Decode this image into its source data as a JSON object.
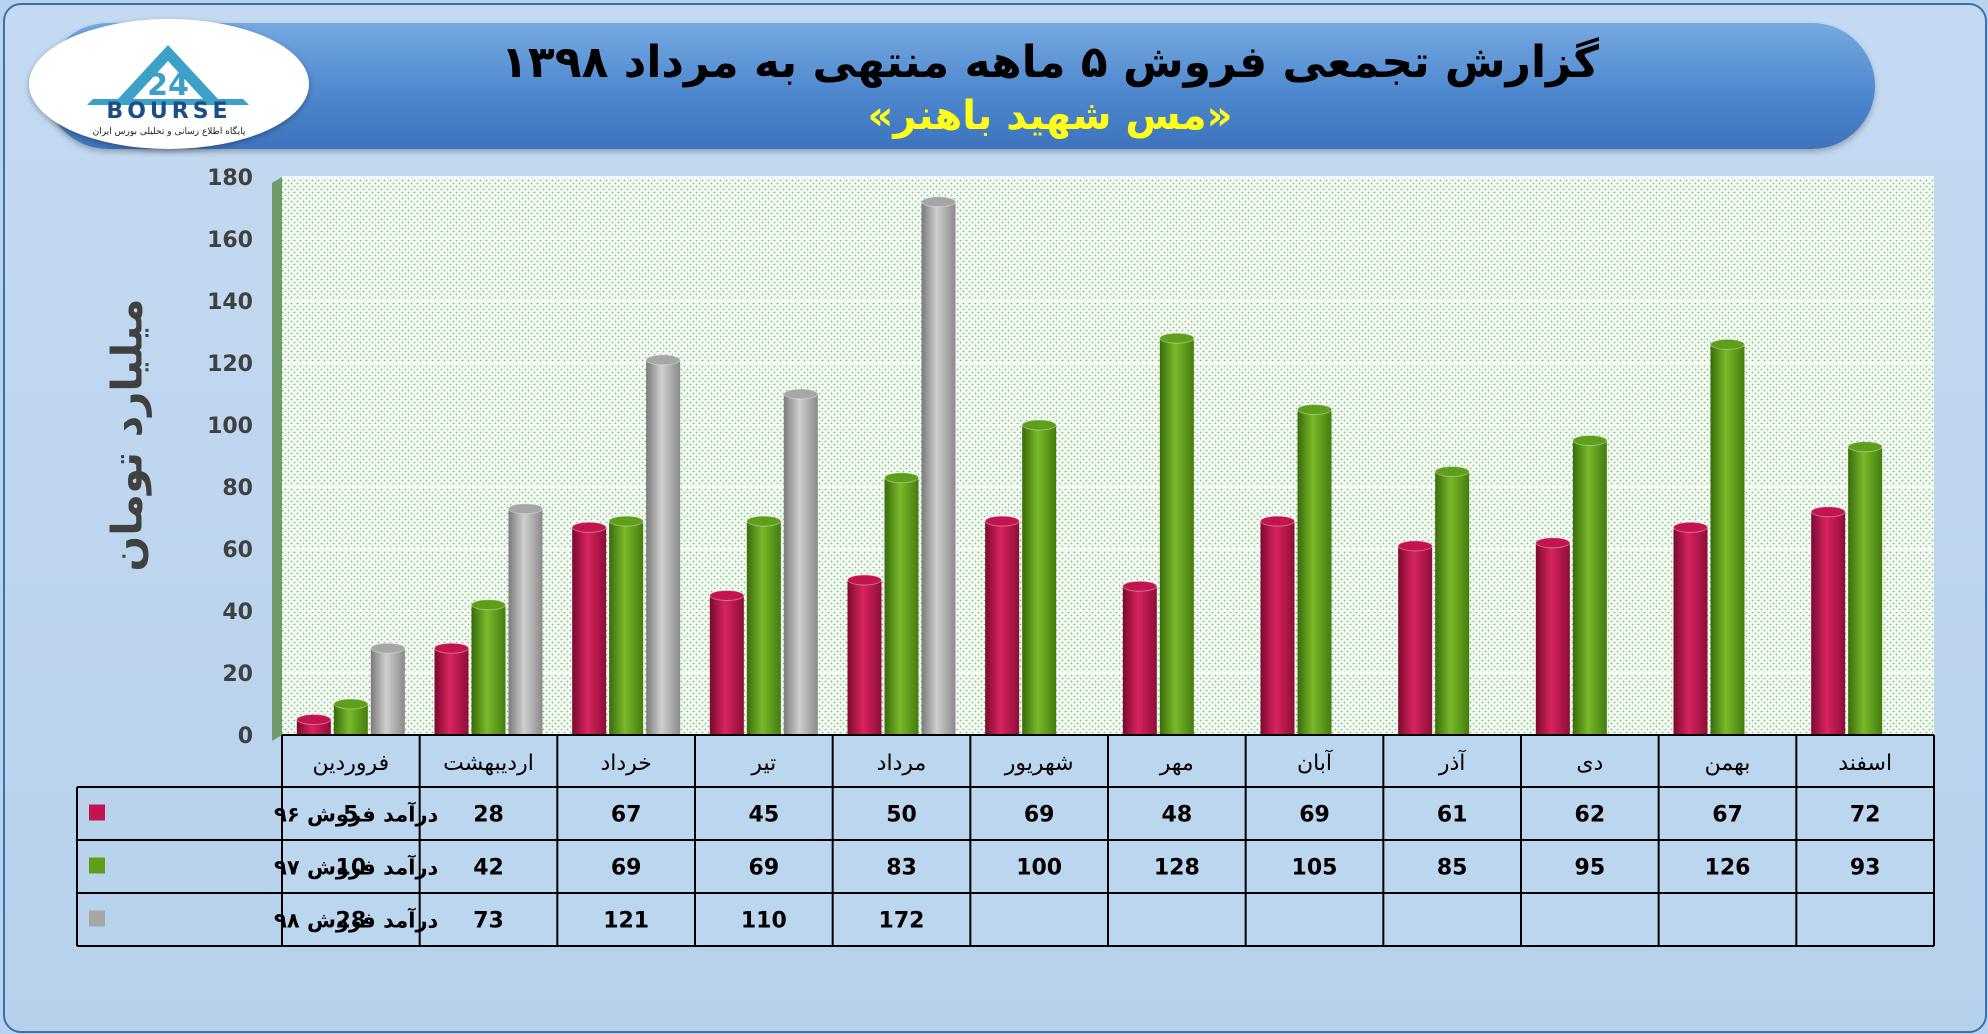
{
  "title": "گزارش تجمعی فروش ۵ ماهه منتهی به مرداد ۱۳۹۸",
  "subtitle": "«مس شهید باهنر»",
  "logo": {
    "word": "BOURSE",
    "tagline": "پایگاه اطلاع رسانی و تحلیلی بورس ایران"
  },
  "colors": {
    "s96": "#c4144f",
    "s97": "#5f9e1a",
    "s98": "#a6a6a6"
  },
  "chart_data": {
    "type": "bar",
    "ylabel": "میلیارد تومان",
    "ylim": [
      0,
      180
    ],
    "yticks": [
      0,
      20,
      40,
      60,
      80,
      100,
      120,
      140,
      160,
      180
    ],
    "grid": true,
    "categories": [
      "فروردین",
      "اردیبهشت",
      "خرداد",
      "تیر",
      "مرداد",
      "شهریور",
      "مهر",
      "آبان",
      "آذر",
      "دی",
      "بهمن",
      "اسفند"
    ],
    "series": [
      {
        "name": "درآمد فروش ۹۶",
        "color": "#c4144f",
        "values": [
          5,
          28,
          67,
          45,
          50,
          69,
          48,
          69,
          61,
          62,
          67,
          72
        ]
      },
      {
        "name": "درآمد فروش ۹۷",
        "color": "#5f9e1a",
        "values": [
          10,
          42,
          69,
          69,
          83,
          100,
          128,
          105,
          85,
          95,
          126,
          93
        ]
      },
      {
        "name": "درآمد فروش ۹۸",
        "color": "#a6a6a6",
        "values": [
          28,
          73,
          121,
          110,
          172,
          null,
          null,
          null,
          null,
          null,
          null,
          null
        ]
      }
    ]
  }
}
